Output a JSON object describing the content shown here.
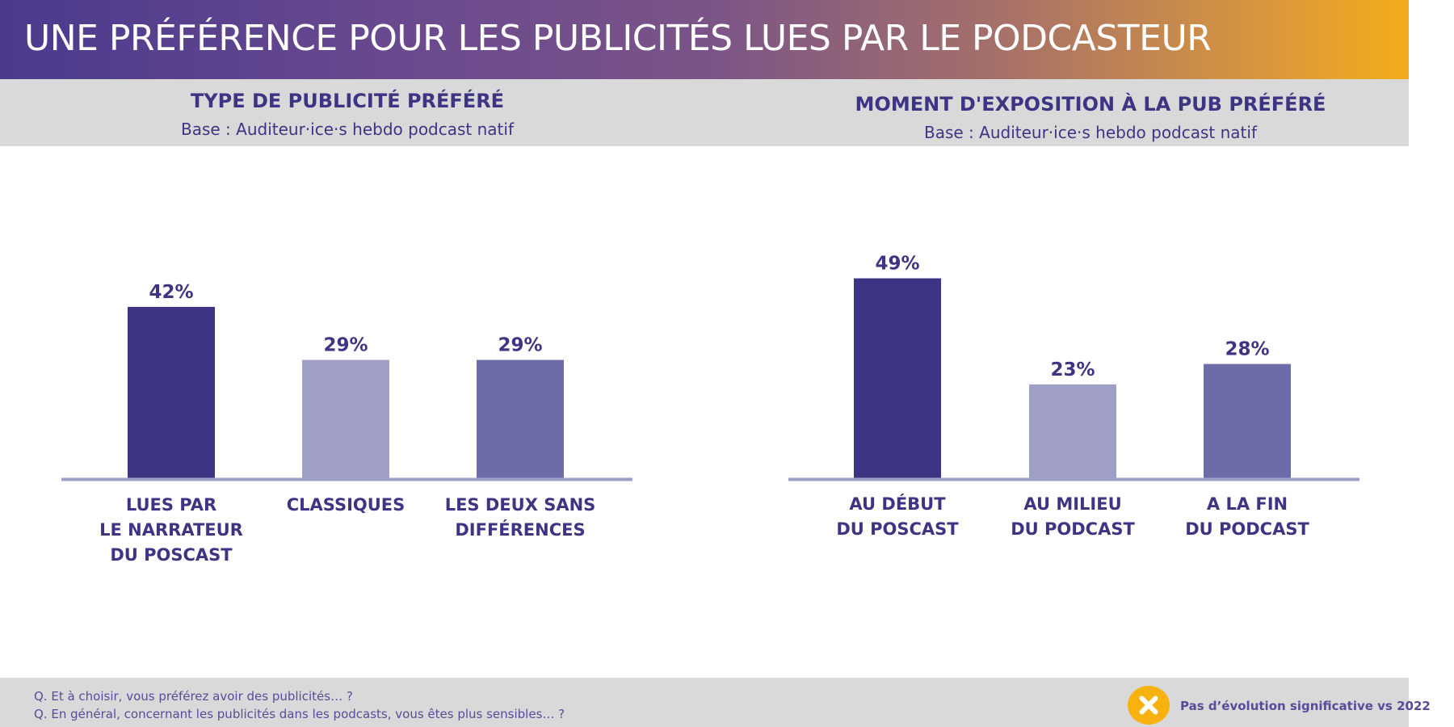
{
  "page": {
    "title": "UNE PRÉFÉRENCE POUR LES PUBLICITÉS LUES PAR LE PODCASTEUR"
  },
  "panels": [
    {
      "title": "TYPE DE PUBLICITÉ PRÉFÉRÉ",
      "base": "Base : Auditeur·ice·s hebdo podcast natif"
    },
    {
      "title": "MOMENT D'EXPOSITION À LA PUB PRÉFÉRÉ",
      "base": "Base : Auditeur·ice·s hebdo podcast natif"
    }
  ],
  "chart_data": [
    {
      "type": "bar",
      "title": "TYPE DE PUBLICITÉ PRÉFÉRÉ",
      "categories": [
        [
          "LUES PAR",
          "LE NARRATEUR",
          "DU POSCAST"
        ],
        [
          "CLASSIQUES"
        ],
        [
          "LES DEUX SANS",
          "DIFFÉRENCES"
        ]
      ],
      "values": [
        42,
        29,
        29
      ],
      "value_labels": [
        "42%",
        "29%",
        "29%"
      ],
      "colors": [
        "#3d3584",
        "#9f9fc5",
        "#6e6ca8"
      ],
      "ylim": [
        0,
        100
      ],
      "grid": false,
      "legend": "none"
    },
    {
      "type": "bar",
      "title": "MOMENT D'EXPOSITION À LA PUB PRÉFÉRÉ",
      "categories": [
        [
          "AU DÉBUT",
          "DU POSCAST"
        ],
        [
          "AU MILIEU",
          "DU PODCAST"
        ],
        [
          "A LA FIN",
          "DU PODCAST"
        ]
      ],
      "values": [
        49,
        23,
        28
      ],
      "value_labels": [
        "49%",
        "23%",
        "28%"
      ],
      "colors": [
        "#3d3584",
        "#9f9fc5",
        "#6e6ca8"
      ],
      "ylim": [
        0,
        100
      ],
      "grid": false,
      "legend": "none"
    }
  ],
  "colors": {
    "axis": "#9f9fc5",
    "text": "#3d3584",
    "badge": "#f7b20f"
  },
  "footer": {
    "questions": [
      "Q. Et à choisir, vous préférez avoir des publicités… ?",
      "Q. En général, concernant les publicités dans les podcasts, vous êtes plus sensibles… ?"
    ],
    "badge_icon": "close-circle-icon",
    "note": "Pas d’évolution significative vs 2022"
  }
}
